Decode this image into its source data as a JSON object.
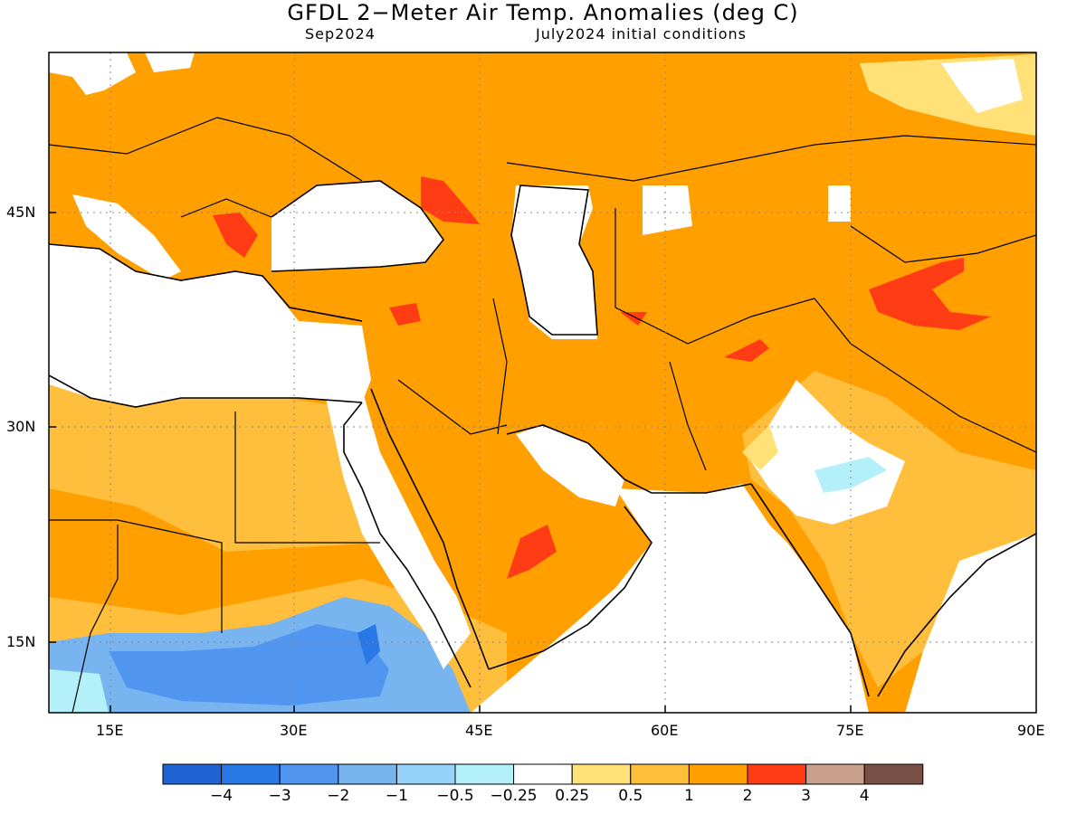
{
  "title": "GFDL 2−Meter Air Temp. Anomalies (deg C)",
  "subtitle_left": "Sep2024",
  "subtitle_right": "July2024 initial conditions",
  "lat_labels": [
    "45N",
    "30N",
    "15N"
  ],
  "lon_labels": [
    "15E",
    "30E",
    "45E",
    "60E",
    "75E",
    "90E"
  ],
  "colorbar": {
    "labels": [
      "−4",
      "−3",
      "−2",
      "−1",
      "−0.5",
      "−0.25",
      "0.25",
      "0.5",
      "1",
      "2",
      "3",
      "4"
    ],
    "colors": [
      "#1e64d2",
      "#2878e6",
      "#5096f0",
      "#78b4f0",
      "#96d2fa",
      "#b4f0fa",
      "#ffffff",
      "#ffe178",
      "#ffbe3c",
      "#ffa000",
      "#ff3c14",
      "#c8a08c",
      "#785046"
    ]
  },
  "map_colors": {
    "orange": "#ffa000",
    "light_orange": "#ffbe3c",
    "yellow": "#ffe178",
    "red": "#ff3c14",
    "light_blue": "#96d2fa",
    "mid_blue": "#78b4f0",
    "blue": "#5096f0",
    "dark_blue": "#2878e6",
    "cyan": "#b4f0fa"
  }
}
